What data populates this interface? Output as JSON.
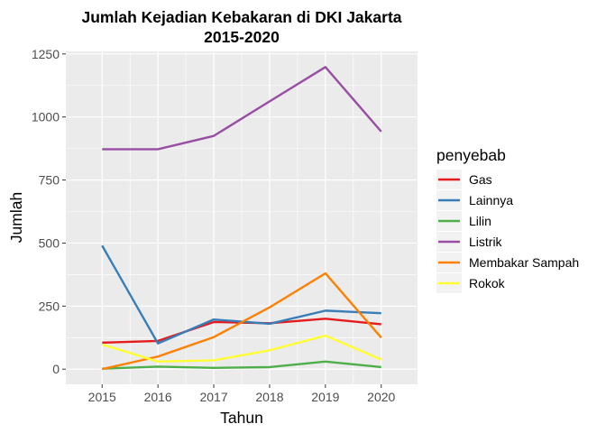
{
  "chart_data": {
    "type": "line",
    "title_line1": "Jumlah Kejadian Kebakaran di DKI Jakarta",
    "title_line2": "2015-2020",
    "xlabel": "Tahun",
    "ylabel": "Jumlah",
    "x": [
      2015,
      2016,
      2017,
      2018,
      2019,
      2020
    ],
    "x_ticks": [
      "2015",
      "2016",
      "2017",
      "2018",
      "2019",
      "2020"
    ],
    "y_ticks": [
      "0",
      "250",
      "500",
      "750",
      "1000",
      "1250"
    ],
    "y_tick_values": [
      0,
      250,
      500,
      750,
      1000,
      1250
    ],
    "ylim": [
      -60,
      1260
    ],
    "xlim": [
      2014.35,
      2020.65
    ],
    "grid": true,
    "legend_title": "penyebab",
    "legend_position": "right",
    "series": [
      {
        "name": "Gas",
        "color": "#E41A1C",
        "values": [
          105,
          112,
          187,
          182,
          200,
          178
        ]
      },
      {
        "name": "Lainnya",
        "color": "#377EB8",
        "values": [
          490,
          102,
          197,
          180,
          232,
          222
        ]
      },
      {
        "name": "Lilin",
        "color": "#4DAF4A",
        "values": [
          2,
          10,
          5,
          8,
          30,
          8
        ]
      },
      {
        "name": "Listrik",
        "color": "#984EA3",
        "values": [
          872,
          872,
          925,
          1062,
          1198,
          942
        ]
      },
      {
        "name": "Membakar Sampah",
        "color": "#FF7F00",
        "values": [
          0,
          50,
          127,
          245,
          380,
          125
        ]
      },
      {
        "name": "Rokok",
        "color": "#FFFF33",
        "values": [
          98,
          30,
          35,
          75,
          133,
          38
        ]
      }
    ]
  }
}
